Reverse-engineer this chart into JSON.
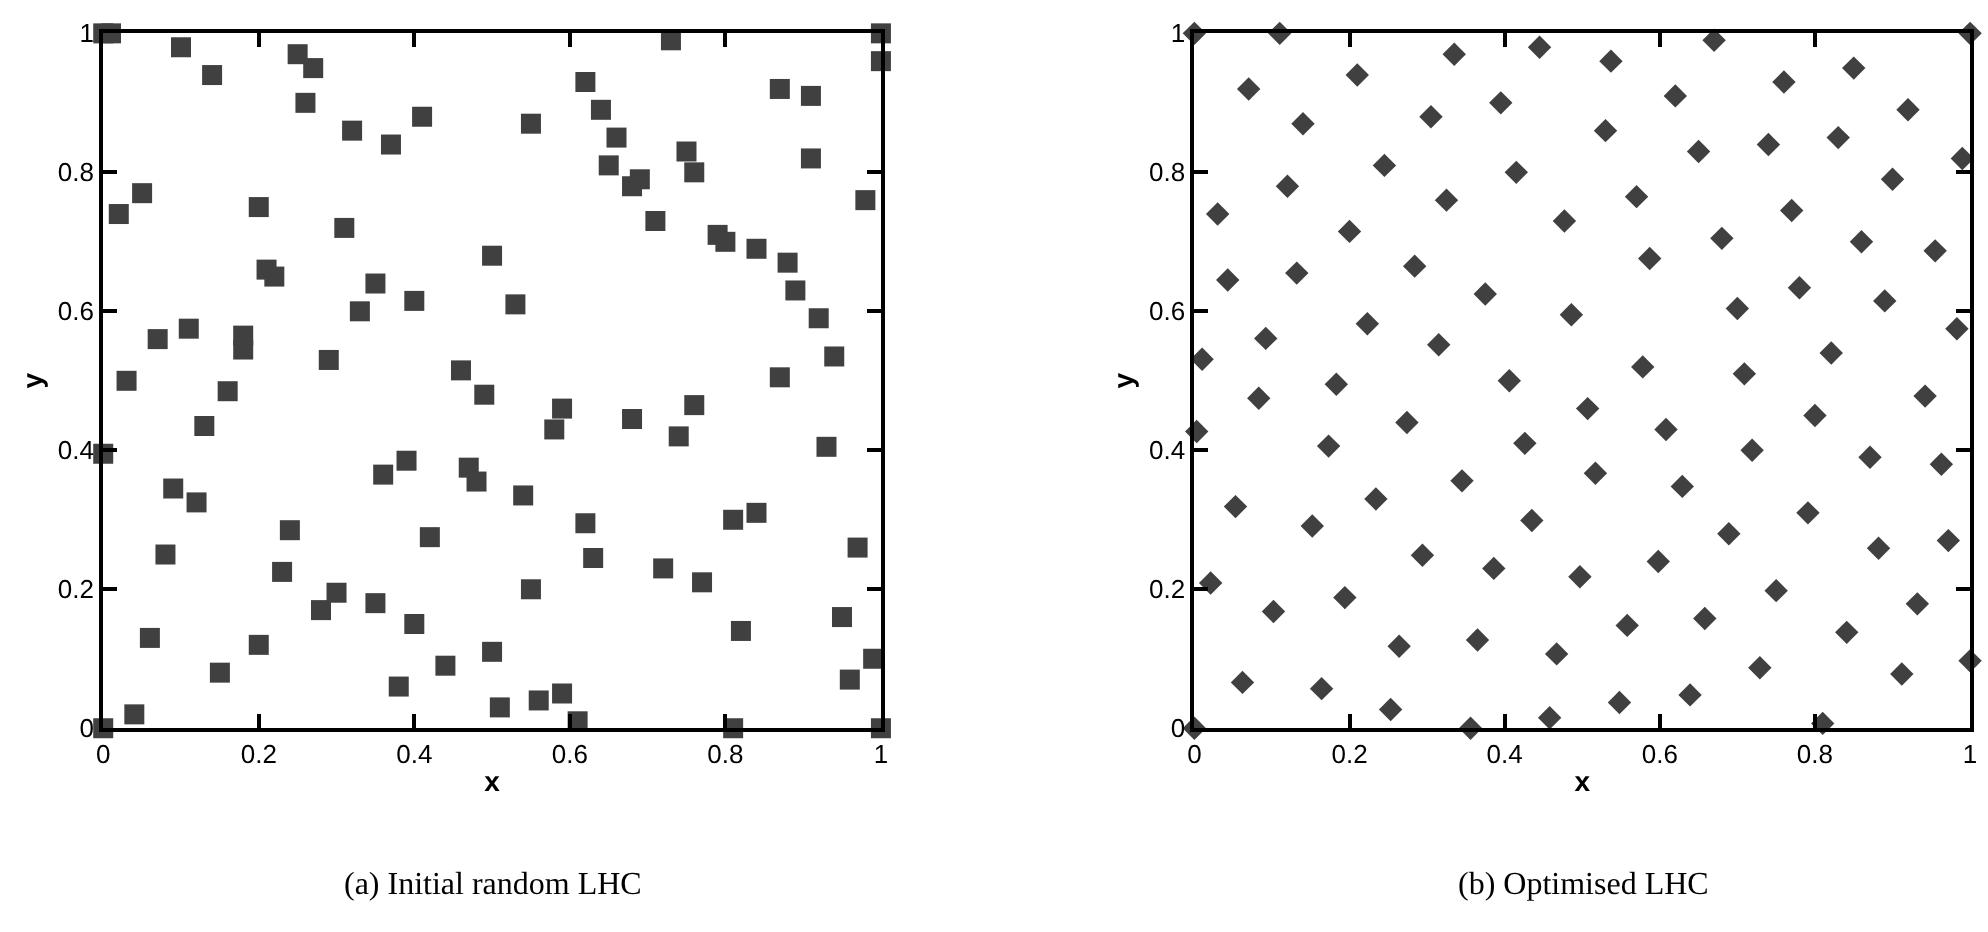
{
  "chart_data": [
    {
      "type": "scatter",
      "xlabel": "x",
      "ylabel": "y",
      "annotations": [
        "(a) Initial random LHC"
      ],
      "marker": "square",
      "xlim": [
        0,
        1
      ],
      "ylim": [
        0,
        1
      ],
      "xticks": [
        0,
        0.2,
        0.4,
        0.6,
        0.8,
        1
      ],
      "yticks": [
        0,
        0.2,
        0.4,
        0.6,
        0.8,
        1
      ],
      "series": [
        {
          "color": "#404040",
          "x": [
            0,
            0.01,
            0.02,
            0.05,
            0.1,
            0.14,
            0.25,
            0.27,
            0.26,
            0.32,
            0.37,
            0.41,
            0.2,
            0.31,
            0.55,
            0.62,
            0.64,
            0.66,
            0.65,
            0.69,
            0.68,
            0.71,
            0.73,
            0.75,
            0.76,
            0.87,
            0.91,
            0.91,
            0.98,
            1,
            1,
            0.79,
            0.8,
            0.84,
            0.88,
            0.89,
            0.92,
            0.94,
            0.87,
            0.93,
            0.21,
            0.22,
            0.35,
            0.4,
            0.5,
            0.53,
            0.33,
            0.03,
            0.07,
            0.11,
            0.18,
            0.18,
            0.16,
            0.13,
            0.29,
            0.46,
            0.49,
            0.58,
            0.59,
            0.68,
            0.76,
            0.74,
            0,
            0.36,
            0.39,
            0.47,
            0.48,
            0.54,
            0.09,
            0.12,
            0.08,
            0.24,
            0.23,
            0.06,
            0.2,
            0.15,
            0.04,
            0,
            0.28,
            0.3,
            0.35,
            0.4,
            0.42,
            0.44,
            0.38,
            0.5,
            0.51,
            0.55,
            0.56,
            0.59,
            0.61,
            0.62,
            0.63,
            0.72,
            0.77,
            0.81,
            0.84,
            0.82,
            0.81,
            0.95,
            0.97,
            0.96,
            0.99,
            1
          ],
          "values": [
            1,
            1,
            0.74,
            0.77,
            0.98,
            0.94,
            0.97,
            0.95,
            0.9,
            0.86,
            0.84,
            0.88,
            0.75,
            0.72,
            0.87,
            0.93,
            0.89,
            0.85,
            0.81,
            0.79,
            0.78,
            0.73,
            0.99,
            0.83,
            0.8,
            0.92,
            0.91,
            0.82,
            0.76,
            1,
            0.96,
            0.71,
            0.7,
            0.69,
            0.67,
            0.63,
            0.59,
            0.535,
            0.505,
            0.405,
            0.66,
            0.65,
            0.64,
            0.615,
            0.68,
            0.61,
            0.6,
            0.5,
            0.56,
            0.575,
            0.545,
            0.565,
            0.485,
            0.435,
            0.53,
            0.515,
            0.48,
            0.43,
            0.46,
            0.445,
            0.465,
            0.42,
            0.395,
            0.365,
            0.385,
            0.375,
            0.355,
            0.335,
            0.345,
            0.325,
            0.25,
            0.285,
            0.225,
            0.13,
            0.12,
            0.08,
            0.02,
            0,
            0.17,
            0.195,
            0.18,
            0.15,
            0.275,
            0.09,
            0.06,
            0.11,
            0.03,
            0.2,
            0.04,
            0.05,
            0.01,
            0.295,
            0.245,
            0.23,
            0.21,
            0.3,
            0.31,
            0.14,
            0,
            0.16,
            0.26,
            0.07,
            0.1,
            0
          ]
        }
      ]
    },
    {
      "type": "scatter",
      "xlabel": "x",
      "ylabel": "y",
      "annotations": [
        "(b) Optimised LHC"
      ],
      "marker": "diamond",
      "xlim": [
        0,
        1
      ],
      "ylim": [
        0,
        1
      ],
      "xticks": [
        0,
        0.2,
        0.4,
        0.6,
        0.8,
        1
      ],
      "yticks": [
        0,
        0.2,
        0.4,
        0.6,
        0.8,
        1
      ],
      "series": [
        {
          "color": "#404040",
          "x": [
            0,
            0.11,
            0.07,
            0.14,
            0.21,
            0.335,
            0.305,
            0.395,
            0.445,
            0.537,
            0.53,
            0.62,
            0.67,
            0.76,
            0.85,
            0.92,
            1,
            0.99,
            0.74,
            0.83,
            0.65,
            0.9,
            0.03,
            0.12,
            0.245,
            0.2,
            0.325,
            0.415,
            0.477,
            0.57,
            0.77,
            0.68,
            0.86,
            0.955,
            0.587,
            0.043,
            0.132,
            0.284,
            0.375,
            0.486,
            0.7,
            0.78,
            0.89,
            0.983,
            0.01,
            0.092,
            0.223,
            0.315,
            0.406,
            0.507,
            0.578,
            0.709,
            0.821,
            0.942,
            0.8,
            0.608,
            0.426,
            0.274,
            0.183,
            0.083,
            0.003,
            0.173,
            0.345,
            0.517,
            0.629,
            0.719,
            0.871,
            0.963,
            0.053,
            0.234,
            0.435,
            0.791,
            0.972,
            0.152,
            0.294,
            0.386,
            0.497,
            0.598,
            0.689,
            0.75,
            0.882,
            0.932,
            0.021,
            0.102,
            0.194,
            0.264,
            0.365,
            0.467,
            0.558,
            0.658,
            0.841,
            0.729,
            0.912,
            1,
            0.062,
            0.164,
            0.253,
            0.356,
            0.458,
            0.548,
            0.639,
            0.81,
            0
          ],
          "values": [
            1,
            1,
            0.92,
            0.87,
            0.94,
            0.97,
            0.88,
            0.9,
            0.98,
            0.96,
            0.86,
            0.91,
            0.99,
            0.93,
            0.95,
            0.89,
            1,
            0.82,
            0.84,
            0.85,
            0.83,
            0.79,
            0.74,
            0.78,
            0.81,
            0.715,
            0.76,
            0.8,
            0.73,
            0.765,
            0.745,
            0.705,
            0.7,
            0.687,
            0.676,
            0.645,
            0.655,
            0.665,
            0.625,
            0.595,
            0.604,
            0.634,
            0.615,
            0.575,
            0.531,
            0.561,
            0.582,
            0.552,
            0.5,
            0.46,
            0.52,
            0.51,
            0.54,
            0.478,
            0.45,
            0.43,
            0.41,
            0.44,
            0.495,
            0.475,
            0.427,
            0.406,
            0.356,
            0.367,
            0.348,
            0.4,
            0.39,
            0.38,
            0.319,
            0.33,
            0.299,
            0.31,
            0.27,
            0.291,
            0.249,
            0.23,
            0.218,
            0.24,
            0.28,
            0.198,
            0.259,
            0.179,
            0.209,
            0.168,
            0.188,
            0.118,
            0.127,
            0.107,
            0.148,
            0.158,
            0.138,
            0.087,
            0.078,
            0.097,
            0.066,
            0.057,
            0.027,
            0,
            0.015,
            0.037,
            0.048,
            0.007,
            0
          ]
        }
      ]
    }
  ]
}
